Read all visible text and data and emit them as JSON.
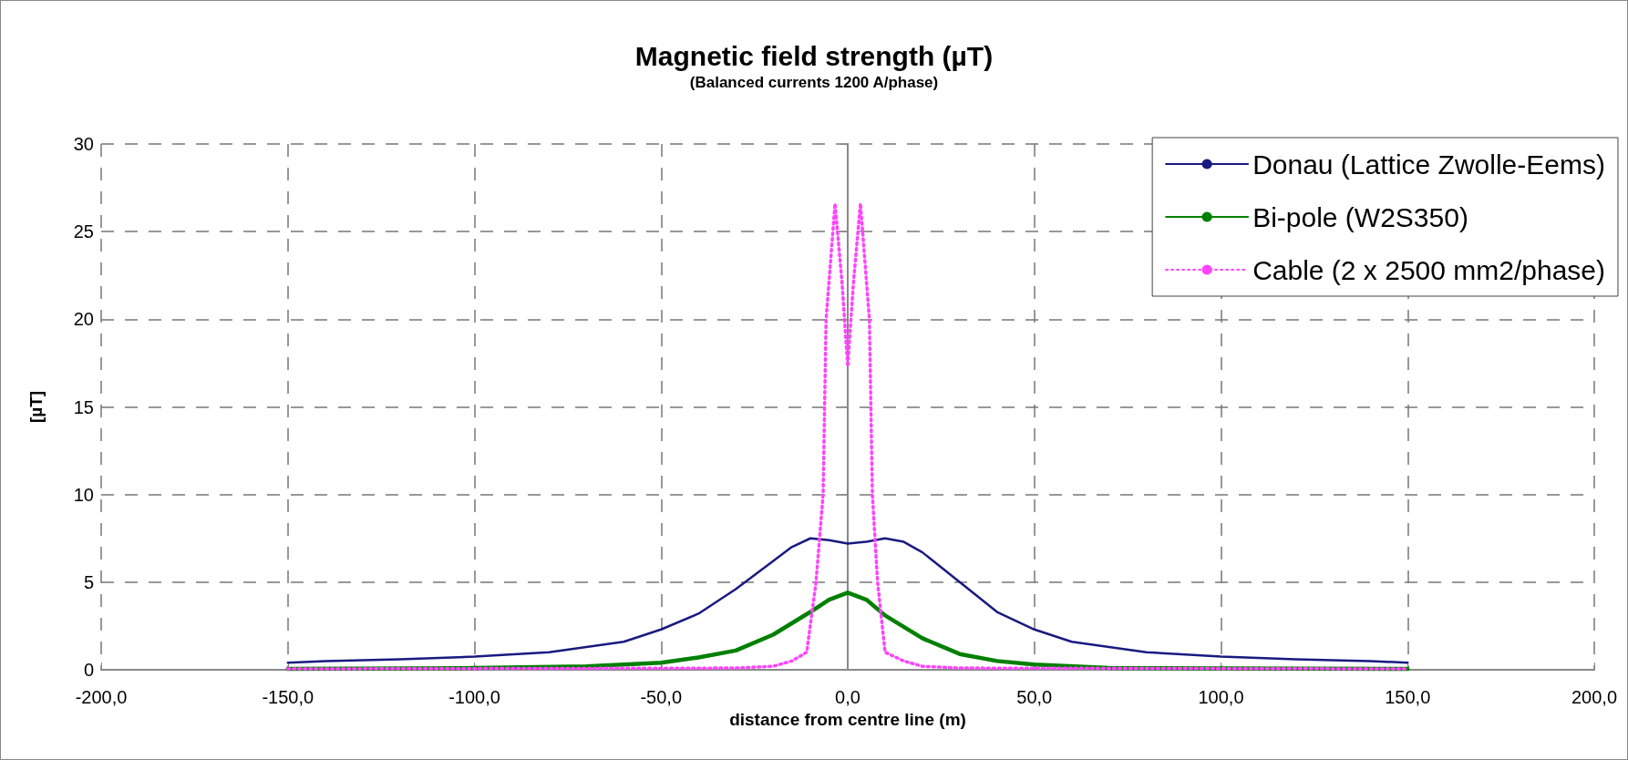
{
  "chart_data": {
    "type": "line",
    "title": "Magnetic field strength (µT)",
    "subtitle": "(Balanced currents 1200 A/phase)",
    "xlabel": "distance from centre line (m)",
    "ylabel": "[µT]",
    "xlim": [
      -200,
      200
    ],
    "xticks": [
      {
        "value": -200,
        "label": "-200,0"
      },
      {
        "value": -150,
        "label": "-150,0"
      },
      {
        "value": -100,
        "label": "-100,0"
      },
      {
        "value": -50,
        "label": "-50,0"
      },
      {
        "value": 0,
        "label": "0,0"
      },
      {
        "value": 50,
        "label": "50,0"
      },
      {
        "value": 100,
        "label": "100,0"
      },
      {
        "value": 150,
        "label": "150,0"
      },
      {
        "value": 200,
        "label": "200,0"
      }
    ],
    "ylim": [
      0,
      30
    ],
    "yticks": [
      0,
      5,
      10,
      15,
      20,
      25,
      30
    ],
    "grid": true,
    "legend": "top right",
    "marker": "none",
    "series": [
      {
        "name": "Donau (Lattice Zwolle-Eems)",
        "color": "#1a1a80",
        "line_style": "solid",
        "x": [
          -150,
          -140,
          -120,
          -100,
          -80,
          -60,
          -50,
          -40,
          -30,
          -20,
          -15,
          -10,
          -5,
          0,
          5,
          10,
          15,
          20,
          30,
          40,
          50,
          60,
          80,
          100,
          120,
          140,
          150
        ],
        "values": [
          0.4,
          0.5,
          0.6,
          0.75,
          1.0,
          1.6,
          2.3,
          3.2,
          4.6,
          6.2,
          7.0,
          7.5,
          7.4,
          7.2,
          7.3,
          7.5,
          7.3,
          6.7,
          5.0,
          3.3,
          2.3,
          1.6,
          1.0,
          0.75,
          0.6,
          0.5,
          0.4
        ]
      },
      {
        "name": "Bi-pole (W2S350)",
        "color": "#008000",
        "line_style": "solid",
        "x": [
          -150,
          -100,
          -70,
          -50,
          -40,
          -30,
          -20,
          -10,
          -5,
          0,
          5,
          10,
          20,
          30,
          40,
          50,
          70,
          150
        ],
        "values": [
          0.05,
          0.1,
          0.2,
          0.4,
          0.7,
          1.1,
          2.0,
          3.3,
          4.0,
          4.4,
          4.0,
          3.1,
          1.8,
          0.9,
          0.5,
          0.3,
          0.1,
          0.05
        ]
      },
      {
        "name": "Cable (2 x 2500 mm2/phase)",
        "color": "#ff44ff",
        "line_style": "dotted",
        "x": [
          -150,
          -30,
          -20,
          -15,
          -11,
          -8.5,
          -6.6,
          -5.8,
          -3.4,
          -1.5,
          0,
          1.5,
          3.4,
          5.8,
          6.6,
          8,
          10,
          15,
          20,
          30,
          150
        ],
        "values": [
          0.05,
          0.1,
          0.2,
          0.5,
          1,
          5,
          10,
          20,
          26.6,
          22,
          17.3,
          22,
          26.6,
          20,
          10,
          5,
          1,
          0.5,
          0.2,
          0.1,
          0.05
        ]
      }
    ]
  }
}
